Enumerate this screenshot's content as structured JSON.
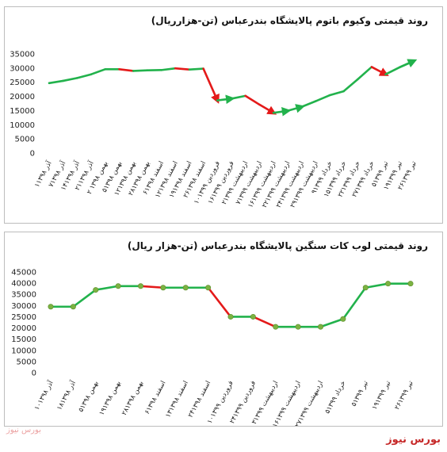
{
  "brand": "بورس نیوز",
  "logo_text": "بورس نیوز",
  "colors": {
    "up": "#22b24c",
    "down": "#e41a1a",
    "marker": "#7cb342",
    "grid": "#e6e6e6"
  },
  "chart_data": [
    {
      "type": "line",
      "title": "روند قیمتی وکیوم باتوم پالایشگاه بندرعباس (تن-هزارریال)",
      "ylim": [
        0,
        35000
      ],
      "yticks": [
        "35000",
        "30000",
        "25000",
        "20000",
        "15000",
        "10000",
        "5000",
        "0"
      ],
      "categories": [
        "۱آذر ۱۳۹۸",
        "۷آذر ۱۳۹۸",
        "۱۴آذر ۱۳۹۸",
        "۲۱آذر ۱۳۹۸",
        "۲ بهمن ۱۳۹۸",
        "۵بهمن ۱۳۹۸",
        "۱۲بهمن ۱۳۹۸",
        "۲۸بهمن ۱۳۹۸",
        "۶اسفند ۱۳۹۸",
        "۱۲اسفند ۱۳۹۸",
        "۱۹اسفند ۱۳۹۸",
        "۲۶اسفند ۱۳۹۸",
        "۱۰فروردین ۱۳۹۹",
        "۱۶فروردین ۱۳۹۹",
        "۲اردیبهشت ۱۳۹۹",
        "۷اردیبهشت ۱۳۹۹",
        "۱۶اردیبهشت ۱۳۹۹",
        "۲۲اردیبهشت ۱۳۹۹",
        "۲۴اردیبهشت ۱۳۹۹",
        "۲۹اردیبهشت ۱۳۹۹",
        "۹خرداد ۱۳۹۹",
        "۱۵خرداد ۱۳۹۹",
        "۲۲خرداد ۱۳۹۹",
        "۲۷خرداد ۱۳۹۹",
        "۵تیر ۱۳۹۹",
        "۱۹تیر ۱۳۹۹",
        "۲۶تیر ۱۳۹۹"
      ],
      "series": [
        {
          "values": [
            24700,
            25500,
            26500,
            27800,
            29600,
            29600,
            29000,
            29200,
            29300,
            29900,
            29500,
            29800,
            18600,
            19200,
            20200,
            17100,
            14200,
            14900,
            16300,
            18300,
            20400,
            21800,
            26000,
            30400,
            27800,
            30300,
            32500
          ]
        }
      ],
      "markers": false,
      "arrows": [
        11,
        12,
        15,
        16,
        17,
        23
      ]
    },
    {
      "type": "line",
      "title": "روند قیمتی لوب کات سنگین پالایشگاه بندرعباس (تن-هزار ریال)",
      "ylim": [
        0,
        45000
      ],
      "yticks": [
        "45000",
        "40000",
        "35000",
        "30000",
        "25000",
        "20000",
        "15000",
        "10000",
        "5000",
        "0"
      ],
      "categories": [
        "۱۰آذر ۱۳۹۸",
        "۱۸آذر ۱۳۹۸",
        "۵بهمن ۱۳۹۸",
        "۱۹بهمن ۱۳۹۸",
        "۲۸بهمن ۱۳۹۸",
        "۶اسفند ۱۳۹۸",
        "۱۳اسفند ۱۳۹۸",
        "۲۴اسفند ۱۳۹۸",
        "۱۰فروردین ۱۳۹۹",
        "۲۴فروردین ۱۳۹۹",
        "۳اردیبهشت ۱۳۹۹",
        "۱۶اردیبهشت ۱۳۹۹",
        "۲۷اردیبهشت ۱۳۹۹",
        "۵خرداد ۱۳۹۹",
        "۵تیر ۱۳۹۹",
        "۱۹تیر ۱۳۹۹",
        "۲۶تیر ۱۳۹۹"
      ],
      "series": [
        {
          "values": [
            29500,
            29500,
            37000,
            38700,
            38700,
            38000,
            38000,
            38000,
            25000,
            25000,
            20500,
            20500,
            20500,
            24000,
            38000,
            39800,
            39800
          ]
        }
      ],
      "markers": true
    }
  ]
}
